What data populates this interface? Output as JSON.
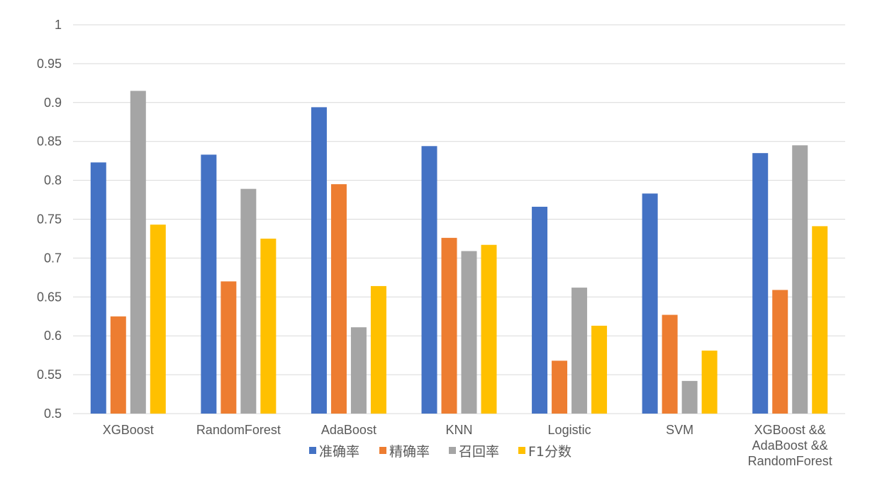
{
  "chart_data": {
    "type": "bar",
    "title": "",
    "xlabel": "",
    "ylabel": "",
    "ylim": [
      0.5,
      1
    ],
    "yticks": [
      "0.5",
      "0.55",
      "0.6",
      "0.65",
      "0.7",
      "0.75",
      "0.8",
      "0.85",
      "0.9",
      "0.95",
      "1"
    ],
    "grid": true,
    "legend_position": "bottom",
    "categories": [
      [
        "XGBoost"
      ],
      [
        "RandomForest"
      ],
      [
        "AdaBoost"
      ],
      [
        "KNN"
      ],
      [
        "Logistic"
      ],
      [
        "SVM"
      ],
      [
        "XGBoost &&",
        "AdaBoost &&",
        "RandomForest"
      ]
    ],
    "series": [
      {
        "name": "准确率",
        "color": "#4472C4",
        "values": [
          0.823,
          0.833,
          0.894,
          0.844,
          0.766,
          0.783,
          0.835
        ]
      },
      {
        "name": "精确率",
        "color": "#ED7D31",
        "values": [
          0.625,
          0.67,
          0.795,
          0.726,
          0.568,
          0.627,
          0.659
        ]
      },
      {
        "name": "召回率",
        "color": "#A5A5A5",
        "values": [
          0.915,
          0.789,
          0.611,
          0.709,
          0.662,
          0.542,
          0.845
        ]
      },
      {
        "name": "F1分数",
        "color": "#FFC000",
        "values": [
          0.743,
          0.725,
          0.664,
          0.717,
          0.613,
          0.581,
          0.741
        ]
      }
    ]
  }
}
